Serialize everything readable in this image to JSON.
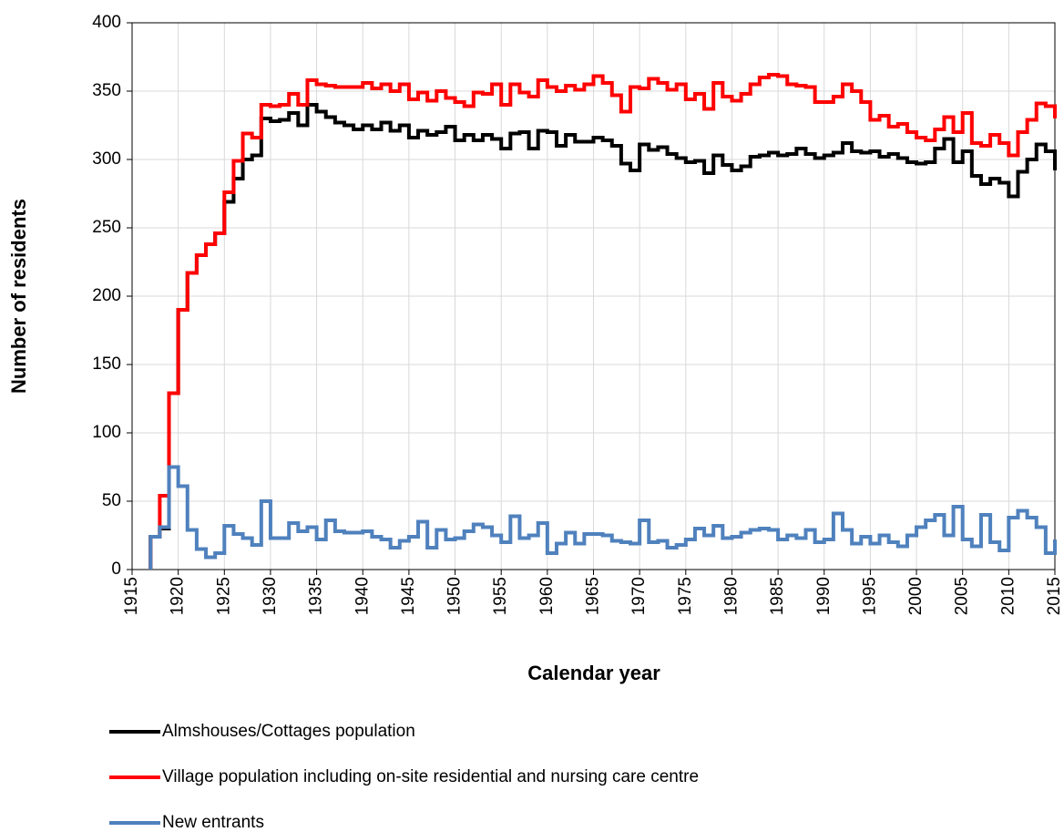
{
  "chart_data": {
    "type": "step",
    "x_label": "Calendar year",
    "y_label": "Number of residents",
    "x": [
      1917,
      1918,
      1919,
      1920,
      1921,
      1922,
      1923,
      1924,
      1925,
      1926,
      1927,
      1928,
      1929,
      1930,
      1931,
      1932,
      1933,
      1934,
      1935,
      1936,
      1937,
      1938,
      1939,
      1940,
      1941,
      1942,
      1943,
      1944,
      1945,
      1946,
      1947,
      1948,
      1949,
      1950,
      1951,
      1952,
      1953,
      1954,
      1955,
      1956,
      1957,
      1958,
      1959,
      1960,
      1961,
      1962,
      1963,
      1964,
      1965,
      1966,
      1967,
      1968,
      1969,
      1970,
      1971,
      1972,
      1973,
      1974,
      1975,
      1976,
      1977,
      1978,
      1979,
      1980,
      1981,
      1982,
      1983,
      1984,
      1985,
      1986,
      1987,
      1988,
      1989,
      1990,
      1991,
      1992,
      1993,
      1994,
      1995,
      1996,
      1997,
      1998,
      1999,
      2000,
      2001,
      2002,
      2003,
      2004,
      2005,
      2006,
      2007,
      2008,
      2009,
      2010,
      2011,
      2012,
      2013,
      2014,
      2015
    ],
    "series": [
      {
        "name": "Almshouses/Cottages population",
        "color": "#000000",
        "values": [
          24,
          30,
          129,
          190,
          217,
          230,
          238,
          246,
          269,
          286,
          300,
          303,
          330,
          328,
          329,
          334,
          325,
          340,
          335,
          331,
          327,
          325,
          322,
          325,
          322,
          327,
          321,
          325,
          316,
          321,
          318,
          320,
          324,
          314,
          318,
          314,
          318,
          315,
          308,
          319,
          320,
          308,
          321,
          320,
          310,
          318,
          313,
          313,
          316,
          314,
          310,
          297,
          292,
          311,
          307,
          309,
          304,
          301,
          298,
          299,
          290,
          303,
          296,
          292,
          295,
          302,
          303,
          305,
          303,
          304,
          308,
          304,
          301,
          303,
          305,
          312,
          306,
          305,
          306,
          302,
          304,
          301,
          298,
          297,
          298,
          308,
          315,
          298,
          306,
          288,
          282,
          286,
          283,
          273,
          291,
          300,
          311,
          306,
          292
        ]
      },
      {
        "name": "Village population including on-site residential and nursing care centre",
        "color": "#ff0000",
        "values": [
          24,
          54,
          129,
          190,
          217,
          230,
          238,
          246,
          276,
          299,
          319,
          316,
          340,
          339,
          340,
          348,
          340,
          358,
          355,
          354,
          353,
          353,
          353,
          356,
          352,
          355,
          350,
          355,
          344,
          349,
          343,
          350,
          345,
          342,
          339,
          349,
          348,
          355,
          340,
          355,
          349,
          346,
          358,
          353,
          350,
          354,
          351,
          355,
          361,
          356,
          347,
          335,
          353,
          352,
          359,
          356,
          351,
          355,
          344,
          348,
          337,
          356,
          346,
          343,
          348,
          355,
          360,
          362,
          361,
          355,
          354,
          353,
          342,
          342,
          346,
          355,
          350,
          342,
          329,
          332,
          324,
          326,
          320,
          316,
          314,
          322,
          331,
          320,
          334,
          312,
          310,
          318,
          312,
          303,
          320,
          329,
          341,
          339,
          330
        ]
      },
      {
        "name": "New entrants",
        "color": "#4f81bd",
        "values": [
          24,
          31,
          75,
          61,
          29,
          15,
          9,
          12,
          32,
          26,
          23,
          18,
          50,
          23,
          23,
          34,
          28,
          31,
          22,
          36,
          28,
          27,
          27,
          28,
          24,
          22,
          16,
          21,
          24,
          35,
          16,
          29,
          22,
          23,
          28,
          33,
          31,
          25,
          20,
          39,
          23,
          25,
          34,
          12,
          19,
          27,
          19,
          26,
          26,
          25,
          21,
          20,
          19,
          36,
          20,
          21,
          16,
          18,
          22,
          30,
          25,
          32,
          23,
          24,
          27,
          29,
          30,
          29,
          22,
          25,
          23,
          29,
          20,
          22,
          41,
          29,
          19,
          24,
          19,
          25,
          20,
          17,
          25,
          31,
          36,
          40,
          25,
          46,
          22,
          17,
          40,
          20,
          14,
          38,
          43,
          38,
          31,
          12,
          22
        ]
      }
    ],
    "xlim": [
      1915,
      2015
    ],
    "xticks": [
      1915,
      1920,
      1925,
      1930,
      1935,
      1940,
      1945,
      1950,
      1955,
      1960,
      1965,
      1970,
      1975,
      1980,
      1985,
      1990,
      1995,
      2000,
      2005,
      2010,
      2015
    ],
    "ylim": [
      0,
      400
    ],
    "yticks": [
      0,
      50,
      100,
      150,
      200,
      250,
      300,
      350,
      400
    ],
    "grid": true,
    "legend": "bottom"
  }
}
